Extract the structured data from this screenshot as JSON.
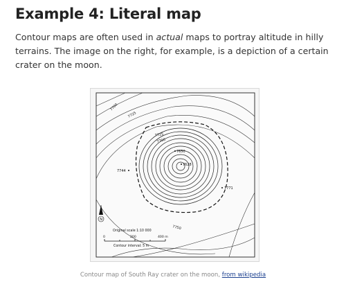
{
  "title": "Example 4: Literal map",
  "paragraph": {
    "before": "Contour maps are often used in ",
    "emphasis": "actual",
    "after": " maps to portray altitude in hilly terrains. The image on the right, for example, is a depiction of a certain crater on the moon."
  },
  "map": {
    "labels": {
      "e7700": "7700",
      "e7725a": "7725",
      "e7725b": "7725",
      "e7700b": "7700",
      "e7650": "7650",
      "e7628": "7628",
      "e7744": "7744",
      "e7771": "7771",
      "e7750": "7750"
    },
    "north": "N",
    "scale_title": "Original scale 1:10 000",
    "scale_200": "200",
    "scale_400": "400 m",
    "scale_0": "0",
    "contour_interval": "Contour interval:  5 m"
  },
  "caption": {
    "text": "Contour map of South Ray crater on the moon, ",
    "link": "from wikipedia"
  }
}
